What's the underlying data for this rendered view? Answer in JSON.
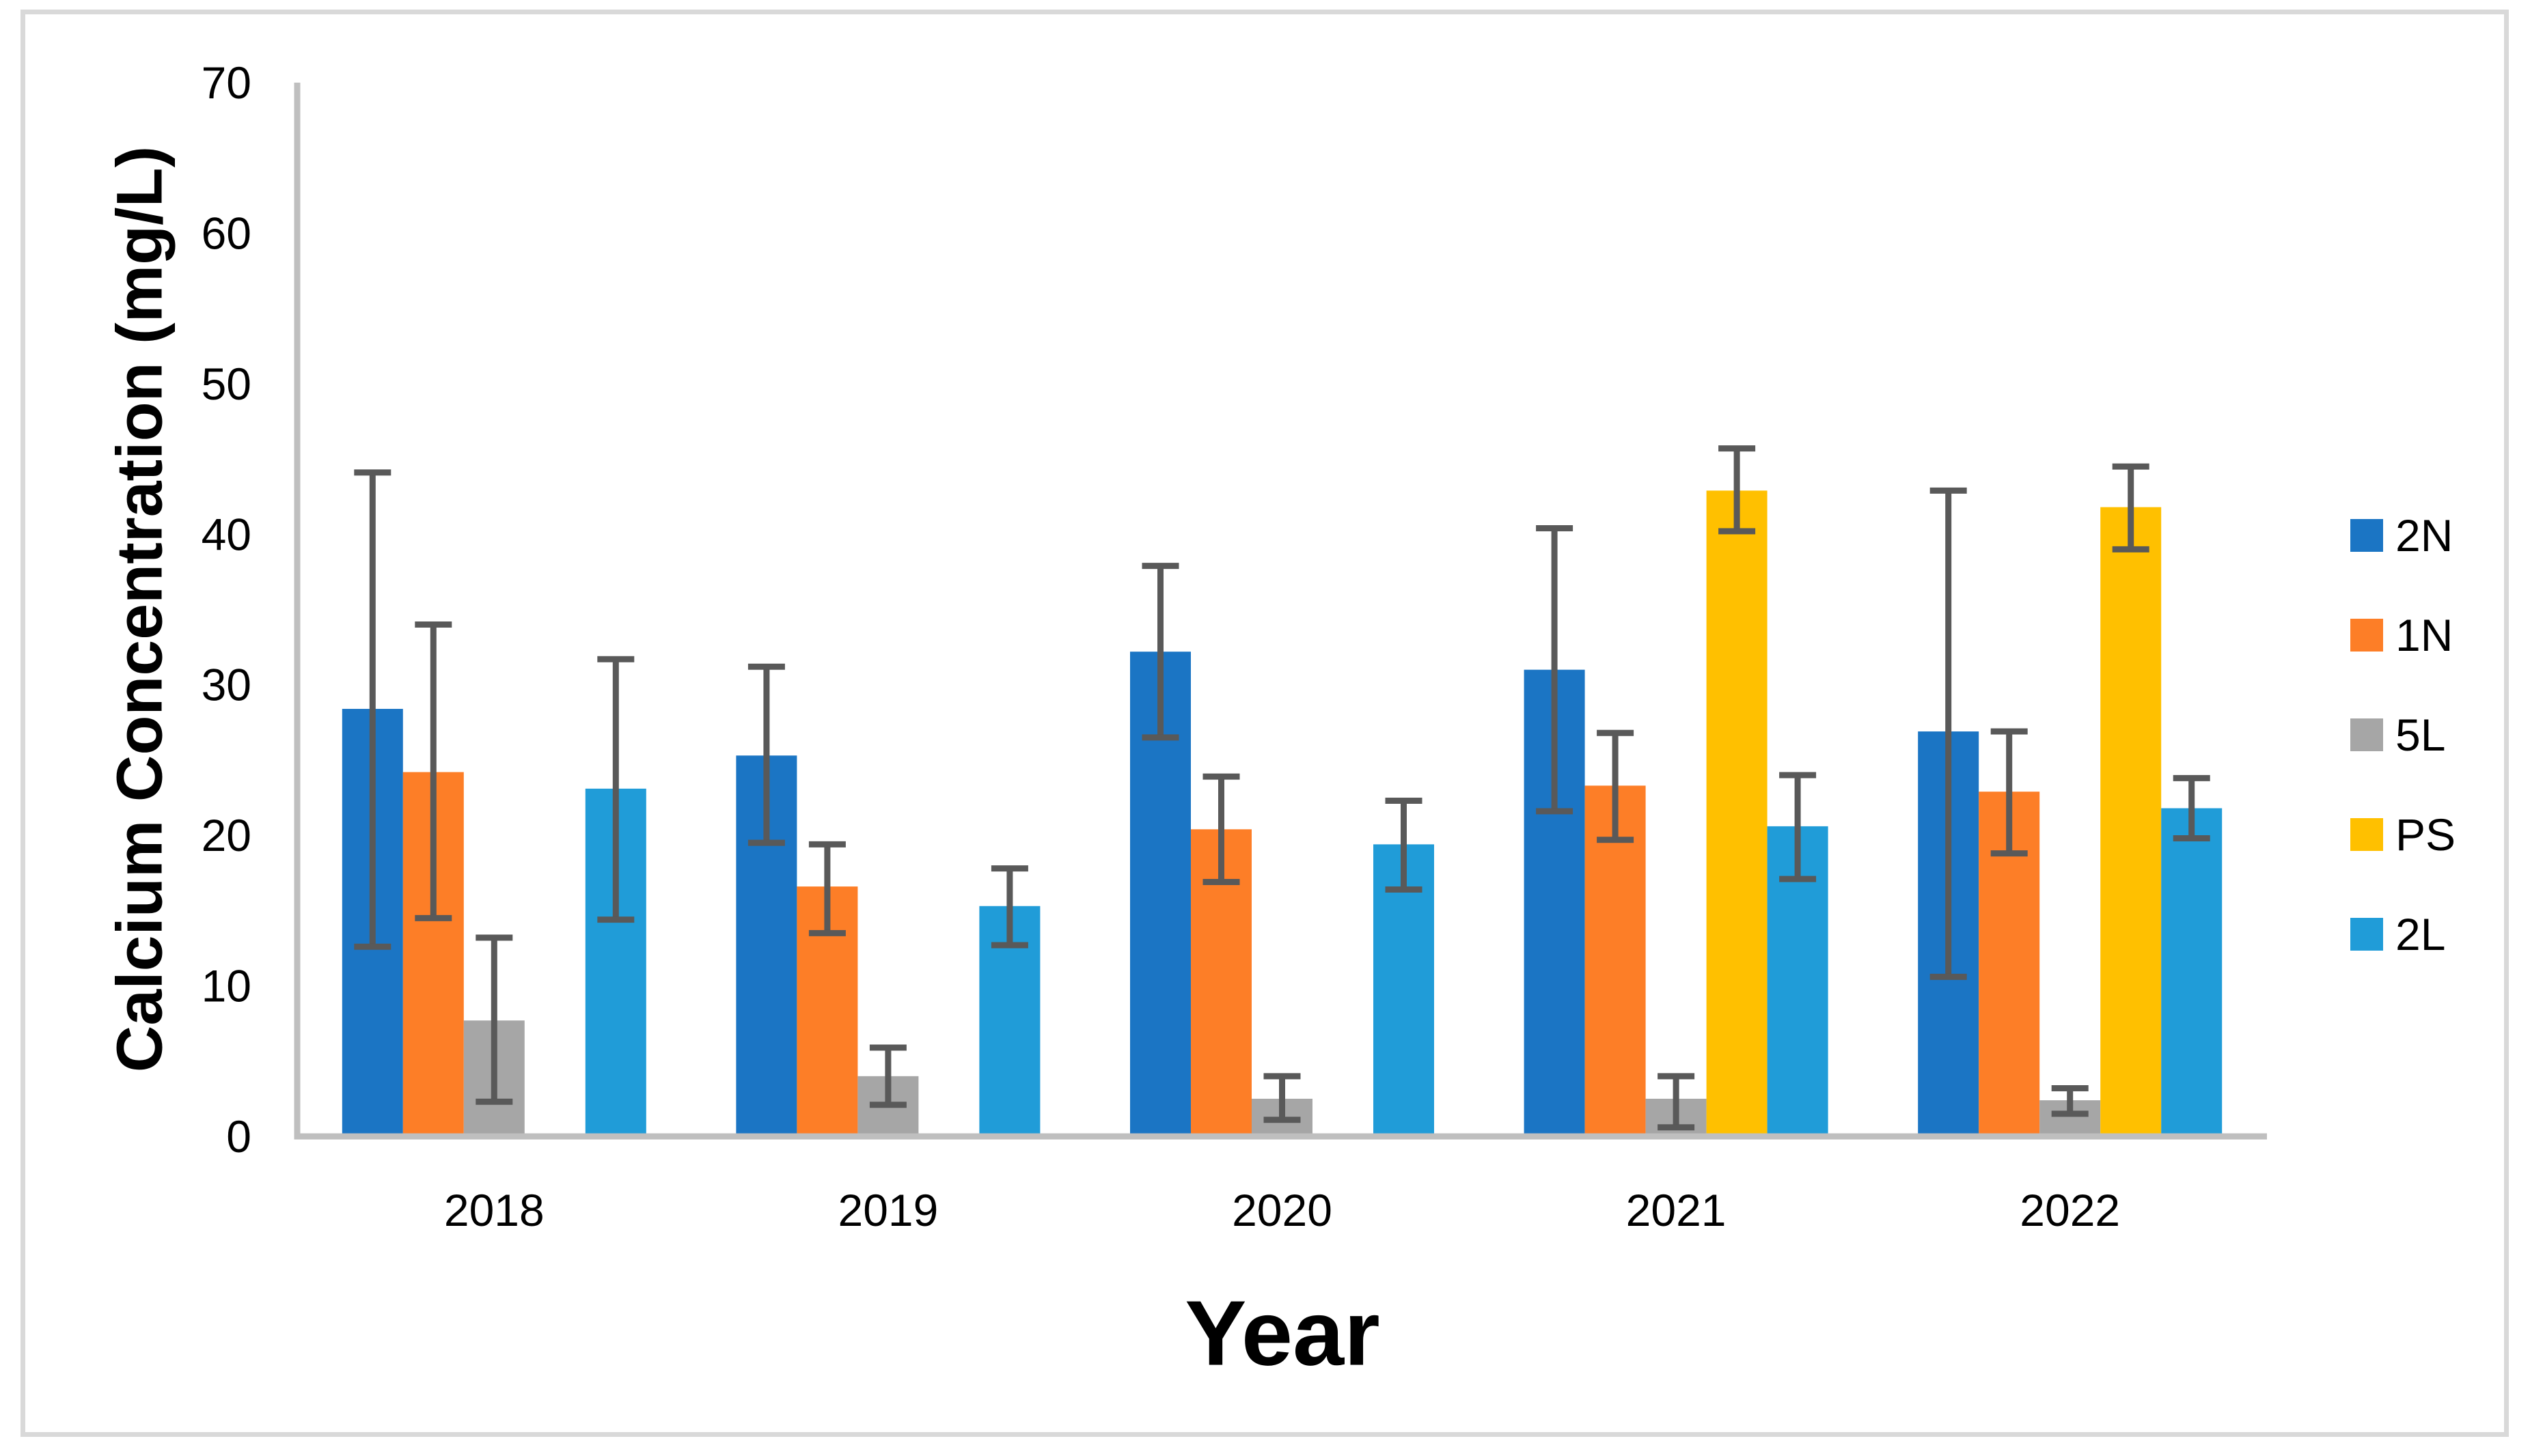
{
  "figure": {
    "background_color": "#FFFFFF",
    "frame_color": "#D9D9D9",
    "axis_line_color": "#BFBFBF",
    "error_bar_color": "#595959",
    "text_color": "#000000"
  },
  "legend": {
    "position": "right",
    "items": [
      {
        "label": "2N",
        "color": "#1B75C4"
      },
      {
        "label": "1N",
        "color": "#FD7E27"
      },
      {
        "label": "5L",
        "color": "#A6A6A6"
      },
      {
        "label": "PS",
        "color": "#FFC000"
      },
      {
        "label": "2L",
        "color": "#209CD8"
      }
    ]
  },
  "chart_data": {
    "type": "bar",
    "title": "",
    "xlabel": "Year",
    "ylabel": "Calcium Concentration (mg/L)",
    "categories": [
      "2018",
      "2019",
      "2020",
      "2021",
      "2022"
    ],
    "ylim": [
      0,
      70
    ],
    "y_ticks": [
      0,
      10,
      20,
      30,
      40,
      50,
      60,
      70
    ],
    "grid": false,
    "error_bars": true,
    "legend_position": "right",
    "series": [
      {
        "name": "2N",
        "color": "#1B75C4",
        "values": [
          28.4,
          25.3,
          32.2,
          31.0,
          26.9
        ],
        "error_low": [
          12.6,
          19.5,
          26.5,
          21.6,
          10.6
        ],
        "error_high": [
          44.1,
          31.2,
          37.9,
          40.4,
          42.9
        ]
      },
      {
        "name": "1N",
        "color": "#FD7E27",
        "values": [
          24.2,
          16.6,
          20.4,
          23.3,
          22.9
        ],
        "error_low": [
          14.5,
          13.5,
          16.9,
          19.7,
          18.8
        ],
        "error_high": [
          34.0,
          19.4,
          23.9,
          26.8,
          26.9
        ]
      },
      {
        "name": "5L",
        "color": "#A6A6A6",
        "values": [
          7.7,
          4.0,
          2.5,
          2.5,
          2.4
        ],
        "error_low": [
          2.3,
          2.1,
          1.1,
          0.6,
          1.5
        ],
        "error_high": [
          13.2,
          5.9,
          4.0,
          4.0,
          3.2
        ]
      },
      {
        "name": "PS",
        "color": "#FFC000",
        "values": [
          null,
          null,
          null,
          42.9,
          41.8
        ],
        "error_low": [
          null,
          null,
          null,
          40.2,
          39.0
        ],
        "error_high": [
          null,
          null,
          null,
          45.7,
          44.5
        ]
      },
      {
        "name": "2L",
        "color": "#209CD8",
        "values": [
          23.1,
          15.3,
          19.4,
          20.6,
          21.8
        ],
        "error_low": [
          14.4,
          12.7,
          16.4,
          17.1,
          19.8
        ],
        "error_high": [
          31.7,
          17.8,
          22.3,
          24.0,
          23.8
        ]
      }
    ]
  }
}
